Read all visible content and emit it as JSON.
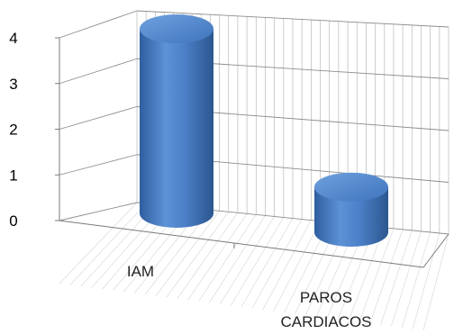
{
  "chart_data": {
    "type": "bar",
    "style": "3d-cylinder",
    "categories": [
      "IAM",
      "PAROS\nCARDIACOS"
    ],
    "values": [
      4,
      1
    ],
    "ylim": [
      0,
      4
    ],
    "yticks": [
      "0",
      "1",
      "2",
      "3",
      "4"
    ],
    "grid": true,
    "legend": "none",
    "colors": {
      "bar_light": "#6a9bd8",
      "bar_mid": "#4a7ec6",
      "bar_dark": "#2e5a9a",
      "grid": "#b8b8b8",
      "floor_grid": "#d4d4d4"
    }
  }
}
